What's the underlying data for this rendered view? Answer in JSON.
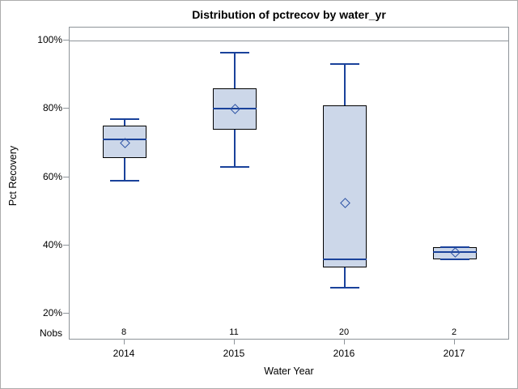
{
  "title": "Distribution of pctrecov by water_yr",
  "nobs_row_label": "Nobs",
  "chart_data": {
    "type": "boxplot",
    "title": "Distribution of pctrecov by water_yr",
    "xlabel": "Water Year",
    "ylabel": "Pct Recovery",
    "y_ticks": [
      20,
      40,
      60,
      80,
      100
    ],
    "y_tick_labels": [
      "20%",
      "40%",
      "60%",
      "80%",
      "100%"
    ],
    "refline_y": 100,
    "grid": "off",
    "legend": "none",
    "categories": [
      "2014",
      "2015",
      "2016",
      "2017"
    ],
    "nobs": [
      8,
      11,
      20,
      2
    ],
    "boxes": [
      {
        "category": "2014",
        "min": 59,
        "q1": 65.5,
        "median": 71,
        "q3": 75,
        "max": 77,
        "mean": 70
      },
      {
        "category": "2015",
        "min": 63,
        "q1": 74,
        "median": 80,
        "q3": 86,
        "max": 96.5,
        "mean": 80
      },
      {
        "category": "2016",
        "min": 27.5,
        "q1": 33.5,
        "median": 36,
        "q3": 81,
        "max": 93,
        "mean": 52.5
      },
      {
        "category": "2017",
        "min": 36,
        "q1": 36,
        "median": 38,
        "q3": 39.5,
        "max": 39.5,
        "mean": 38
      }
    ]
  },
  "colors": {
    "box_fill": "#ccd7e9",
    "box_border": "#000000",
    "line_blue": "#1a429b",
    "mean_diamond_blue": "#2b52a5",
    "axis_gray": "#8e9499",
    "outer_border": "#acacac"
  }
}
